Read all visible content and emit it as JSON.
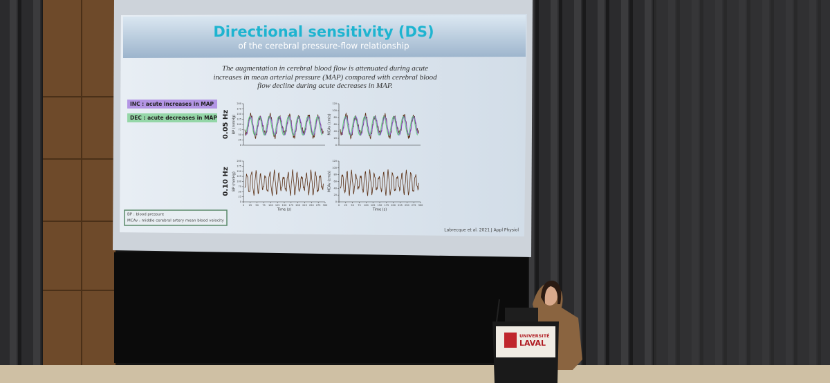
{
  "slide": {
    "title": "Directional sensitivity (DS)",
    "subtitle": "of the cerebral pressure-flow relationship",
    "statement": "The augmentation in cerebral blood flow is attenuated during acute increases in mean arterial pressure (MAP) compared with cerebral blood flow decline during acute decreases in MAP.",
    "legend": [
      {
        "label": "INC : acute increases in MAP",
        "color": "#8a4fd8"
      },
      {
        "label": "DEC : acute decreases in MAP",
        "color": "#52c46a"
      }
    ],
    "rows": [
      "0.05 Hz",
      "0.10 Hz"
    ],
    "panels": [
      {
        "ylabel": "BP (mmHg)",
        "ylim": [
          0,
          200
        ],
        "yticks": [
          0,
          25,
          50,
          75,
          100,
          125,
          150,
          175,
          200
        ]
      },
      {
        "ylabel": "MCAv (cm/s)",
        "ylim": [
          0,
          120
        ],
        "yticks": [
          0,
          20,
          40,
          60,
          80,
          100,
          120
        ]
      }
    ],
    "xlabel": "Time (s)",
    "xlim": [
      0,
      300
    ],
    "xticks": [
      0,
      25,
      50,
      75,
      100,
      125,
      150,
      175,
      200,
      225,
      250,
      275,
      300
    ],
    "footnote": [
      "BP : blood pressure",
      "MCAv : middle cerebral artery mean blood velocity"
    ],
    "citation": "Labrecque et al. 2021 J Appl Physiol"
  },
  "podium": {
    "logo": [
      "UNIVERSITÉ",
      "LAVAL"
    ]
  }
}
